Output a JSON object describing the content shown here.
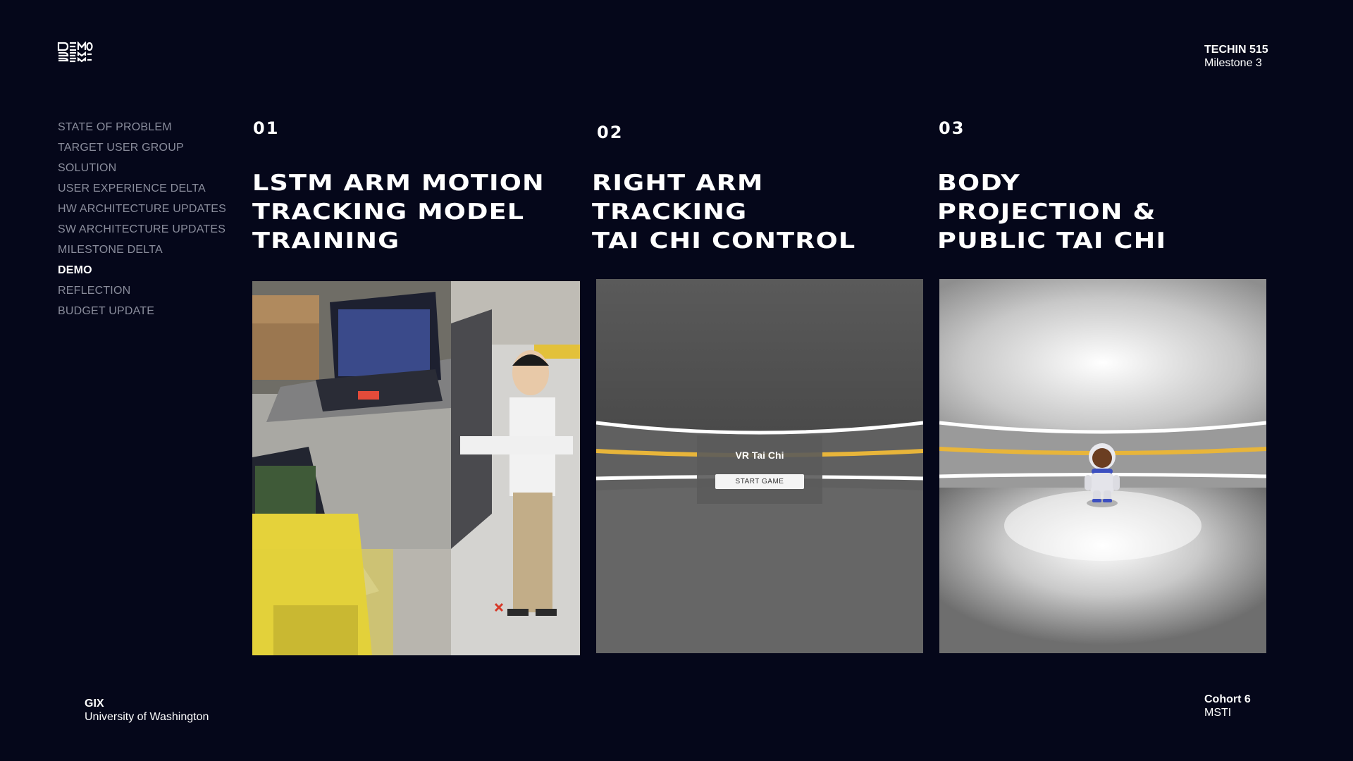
{
  "header": {
    "logo_text": "DEMO",
    "course_code": "TECHIN 515",
    "milestone": "Milestone 3"
  },
  "nav": {
    "items": [
      {
        "label": "STATE OF PROBLEM"
      },
      {
        "label": "TARGET USER GROUP"
      },
      {
        "label": "SOLUTION"
      },
      {
        "label": "USER EXPERIENCE DELTA"
      },
      {
        "label": "HW ARCHITECTURE UPDATES"
      },
      {
        "label": "SW ARCHITECTURE UPDATES"
      },
      {
        "label": "MILESTONE DELTA"
      },
      {
        "label": "DEMO"
      },
      {
        "label": "REFLECTION"
      },
      {
        "label": "BUDGET UPDATE"
      }
    ],
    "active_index": 7
  },
  "columns": [
    {
      "number": "01",
      "title_lines": [
        "LSTM ARM MOTION",
        "TRACKING MODEL",
        "TRAINING"
      ]
    },
    {
      "number": "02",
      "title_lines": [
        "RIGHT ARM",
        "TRACKING",
        "TAI CHI CONTROL"
      ]
    },
    {
      "number": "03",
      "title_lines": [
        "BODY",
        "PROJECTION &",
        "PUBLIC TAI CHI"
      ]
    }
  ],
  "vr_menu": {
    "title": "VR Tai Chi",
    "start_button": "START GAME"
  },
  "footer": {
    "org": "GIX",
    "university": "University of Washington",
    "cohort": "Cohort 6",
    "program": "MSTI"
  },
  "colors": {
    "background": "#05071a",
    "nav_inactive": "#8a8d9c",
    "vr_accent": "#e8b53a"
  }
}
